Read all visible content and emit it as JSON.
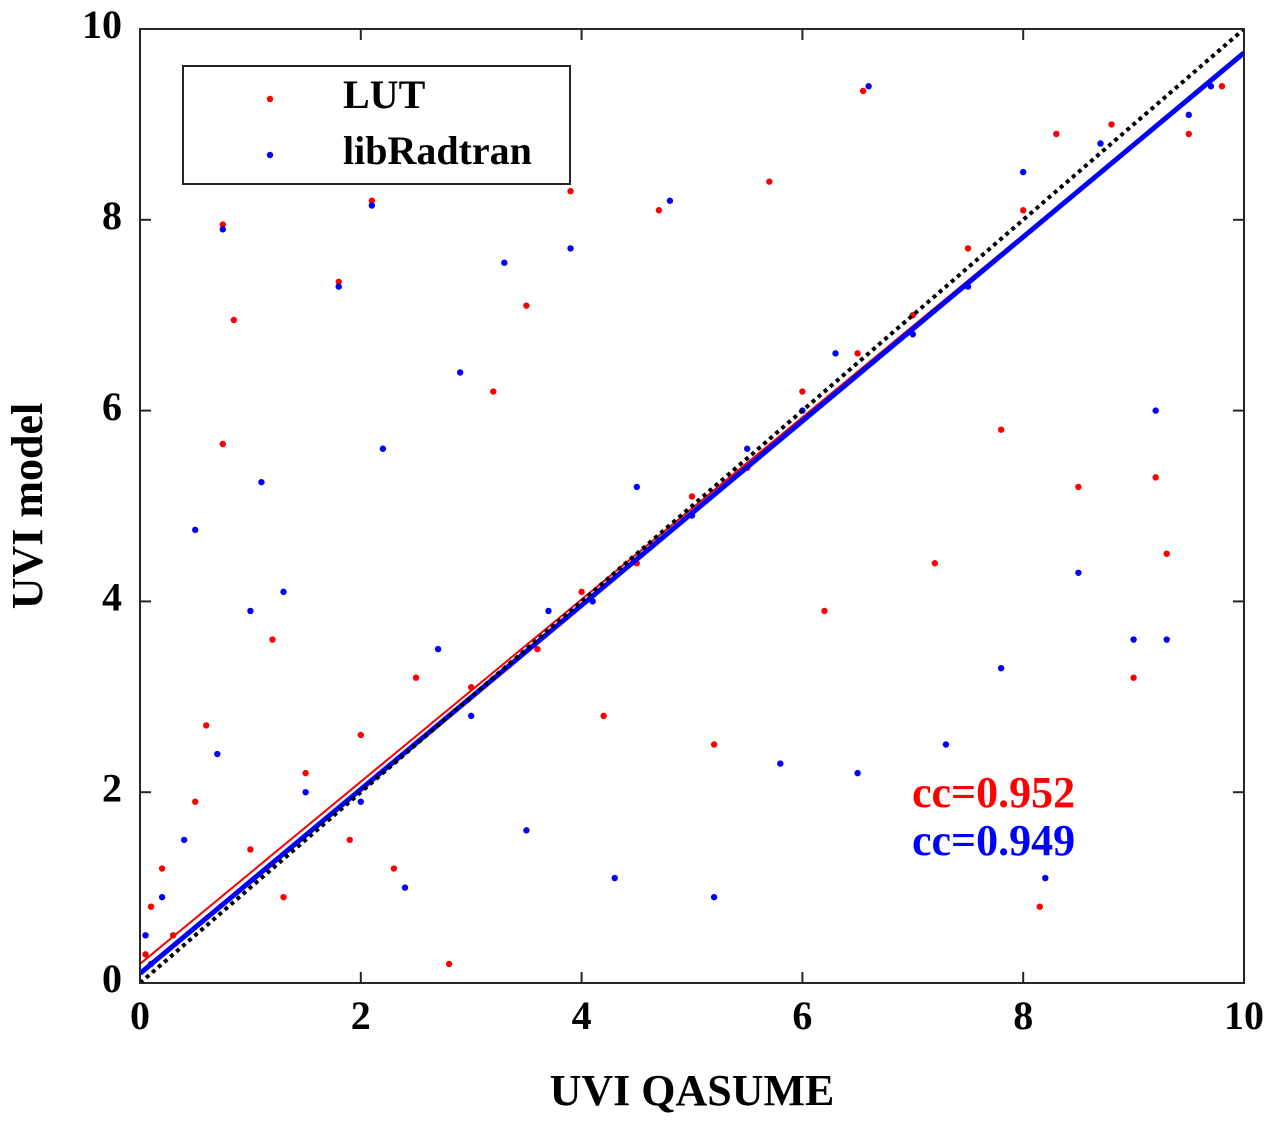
{
  "chart_data": {
    "type": "scatter",
    "xlabel": "UVI QASUME",
    "ylabel": "UVI model",
    "xlim": [
      0,
      10
    ],
    "ylim": [
      0,
      10
    ],
    "xticks": [
      0,
      2,
      4,
      6,
      8,
      10
    ],
    "yticks": [
      0,
      2,
      4,
      6,
      8,
      10
    ],
    "legend": "upper left",
    "series": [
      {
        "name": "LUT",
        "color": "#ff0000",
        "x": [
          0.05,
          0.1,
          0.2,
          0.3,
          0.5,
          0.6,
          0.75,
          0.85,
          0.75,
          1.0,
          1.2,
          1.3,
          1.5,
          1.8,
          1.9,
          2.0,
          2.1,
          2.3,
          2.5,
          2.8,
          3.0,
          3.2,
          3.5,
          3.6,
          3.9,
          4.0,
          4.2,
          4.5,
          4.7,
          5.0,
          5.2,
          5.5,
          5.7,
          6.0,
          6.2,
          6.5,
          6.55,
          7.0,
          7.2,
          7.5,
          7.8,
          8.0,
          8.15,
          8.3,
          8.5,
          8.8,
          9.0,
          9.2,
          9.3,
          9.5,
          9.8
        ],
        "values": [
          0.3,
          0.8,
          1.2,
          0.5,
          1.9,
          2.7,
          7.95,
          6.95,
          5.65,
          1.4,
          3.6,
          0.9,
          2.2,
          7.35,
          1.5,
          2.6,
          8.2,
          1.2,
          3.2,
          0.2,
          3.1,
          6.2,
          7.1,
          3.5,
          8.3,
          4.1,
          2.8,
          4.4,
          8.1,
          5.1,
          2.5,
          5.4,
          8.4,
          6.2,
          3.9,
          6.6,
          9.35,
          7.0,
          4.4,
          7.7,
          5.8,
          8.1,
          0.8,
          8.9,
          5.2,
          9.0,
          3.2,
          5.3,
          4.5,
          8.9,
          9.4
        ]
      },
      {
        "name": "libRadtran",
        "color": "#0000ff",
        "x": [
          0.05,
          0.1,
          0.2,
          0.4,
          0.5,
          0.7,
          0.75,
          1.0,
          1.1,
          1.3,
          1.5,
          1.8,
          2.0,
          2.1,
          2.2,
          2.4,
          2.7,
          2.9,
          3.0,
          3.3,
          3.5,
          3.7,
          3.9,
          4.1,
          4.3,
          4.5,
          4.8,
          5.0,
          5.2,
          5.5,
          5.8,
          6.0,
          6.3,
          6.5,
          6.6,
          7.0,
          7.3,
          7.5,
          7.8,
          8.0,
          8.2,
          8.5,
          8.7,
          9.0,
          9.2,
          9.3,
          9.5,
          9.7
        ],
        "values": [
          0.5,
          0.2,
          0.9,
          1.5,
          4.75,
          2.4,
          7.9,
          3.9,
          5.25,
          4.1,
          2.0,
          7.3,
          1.9,
          8.15,
          5.6,
          1.0,
          3.5,
          6.4,
          2.8,
          7.55,
          1.6,
          3.9,
          7.7,
          4.0,
          1.1,
          5.2,
          8.2,
          4.9,
          0.9,
          5.6,
          2.3,
          6.0,
          6.6,
          2.2,
          9.4,
          6.8,
          2.5,
          7.3,
          3.3,
          8.5,
          1.1,
          4.3,
          8.8,
          3.6,
          6.0,
          3.6,
          9.1,
          9.4
        ]
      }
    ],
    "lines": [
      {
        "color": "#ff0000",
        "width": 2,
        "dashed": false,
        "x": [
          0,
          10
        ],
        "values": [
          0.2,
          9.75
        ]
      },
      {
        "color": "#0000ff",
        "width": 5,
        "dashed": false,
        "x": [
          0,
          10
        ],
        "values": [
          0.1,
          9.75
        ]
      },
      {
        "color": "#000000",
        "width": 4,
        "dashed": true,
        "x": [
          0,
          10
        ],
        "values": [
          0,
          10
        ]
      }
    ],
    "annotations": [
      {
        "text": "cc=0.952",
        "color": "#ff0000"
      },
      {
        "text": "cc=0.949",
        "color": "#0000ff"
      }
    ]
  }
}
